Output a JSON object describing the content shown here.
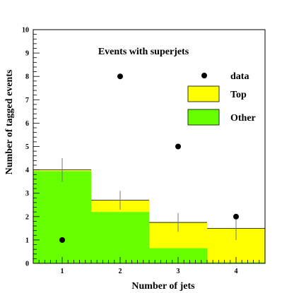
{
  "chart_data": {
    "type": "bar",
    "title": "Events with superjets",
    "xlabel": "Number of jets",
    "ylabel": "Number of tagged events",
    "categories": [
      "1",
      "2",
      "3",
      "4"
    ],
    "xlim": [
      0.5,
      4.5
    ],
    "ylim": [
      0,
      10
    ],
    "y_ticks": [
      "0",
      "1",
      "2",
      "3",
      "4",
      "5",
      "6",
      "7",
      "8",
      "9",
      "10"
    ],
    "stacked": true,
    "series": [
      {
        "name": "Other",
        "color": "#66ff00",
        "values": [
          3.95,
          2.2,
          0.65,
          0.05
        ]
      },
      {
        "name": "Top",
        "color": "#ffff00",
        "values": [
          0.05,
          0.5,
          1.1,
          1.45
        ]
      }
    ],
    "points": {
      "name": "data",
      "color": "#000000",
      "x": [
        1,
        2,
        3,
        4
      ],
      "y": [
        1,
        8,
        5,
        2
      ]
    },
    "error_bars": [
      {
        "x": 1,
        "y": 4.0,
        "low": 3.5,
        "high": 4.5
      },
      {
        "x": 2,
        "y": 2.7,
        "low": 2.3,
        "high": 3.1
      },
      {
        "x": 3,
        "y": 1.75,
        "low": 1.35,
        "high": 2.15
      },
      {
        "x": 4,
        "y": 1.5,
        "low": 1.0,
        "high": 2.0
      }
    ],
    "legend": {
      "placement": "top-right",
      "items": [
        {
          "label": "data",
          "kind": "marker",
          "color": "#000000"
        },
        {
          "label": "Top",
          "kind": "box",
          "color": "#ffff00"
        },
        {
          "label": "Other",
          "kind": "box",
          "color": "#66ff00"
        }
      ]
    },
    "grid": false,
    "title_color": "#3355ee"
  }
}
